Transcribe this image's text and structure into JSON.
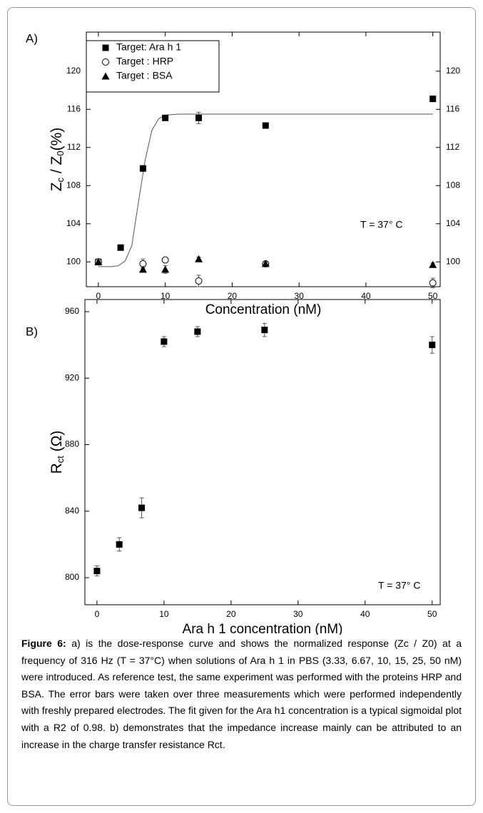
{
  "chart_data": [
    {
      "type": "scatter",
      "panel_label": "A)",
      "xlabel": "Concentration (nM)",
      "ylabel": [
        "Z",
        "c",
        " / Z",
        "0",
        "(%)"
      ],
      "xlim": [
        -1.8,
        51.1
      ],
      "ylim": [
        97.4,
        124.1
      ],
      "xticks": [
        0,
        10,
        20,
        30,
        40,
        50
      ],
      "yticks": [
        100,
        104,
        108,
        112,
        116,
        120
      ],
      "right_tick_labels": true,
      "legend": "upper left",
      "annotation": "T = 37° C",
      "series": [
        {
          "name": "Target: Ara h 1",
          "color": "#000000",
          "marker": "square",
          "x": [
            0,
            3.33,
            6.67,
            10,
            15,
            25,
            50
          ],
          "values": [
            100,
            101.5,
            109.8,
            115.1,
            115.1,
            114.3,
            117.1
          ],
          "errors": [
            0.2,
            0.1,
            0.3,
            0.2,
            0.6,
            0.2,
            0.3
          ]
        },
        {
          "name": "Target : HRP",
          "color": "#000000",
          "marker": "circle",
          "x": [
            0,
            6.67,
            10,
            15,
            25,
            50
          ],
          "values": [
            100,
            99.8,
            100.2,
            98.0,
            99.8,
            97.8
          ],
          "errors": [
            0.2,
            0.5,
            0.2,
            0.6,
            0.2,
            0.5
          ]
        },
        {
          "name": "Target : BSA",
          "color": "#000000",
          "marker": "triangle",
          "x": [
            0,
            6.67,
            10,
            15,
            25,
            50
          ],
          "values": [
            100,
            99.2,
            99.2,
            100.3,
            99.8,
            99.7
          ],
          "errors": [
            0.1,
            0.2,
            0.4,
            0.2,
            0.2,
            0.2
          ]
        }
      ],
      "fit": {
        "color": "#555555",
        "x": [
          0,
          2,
          3,
          4,
          5,
          6,
          7,
          8,
          9,
          10,
          12,
          20,
          50
        ],
        "y": [
          99.5,
          99.5,
          99.6,
          100.1,
          101.7,
          106.3,
          110.7,
          113.8,
          115.0,
          115.4,
          115.5,
          115.5,
          115.5
        ]
      }
    },
    {
      "type": "scatter",
      "panel_label": "B)",
      "xlabel": "Ara h 1 concentration (nM)",
      "ylabel": [
        "R",
        "ct",
        " (Ω)"
      ],
      "xlim": [
        -1.8,
        51.2
      ],
      "ylim": [
        783.7,
        967.3
      ],
      "xticks": [
        0,
        10,
        20,
        30,
        40,
        50
      ],
      "yticks": [
        800,
        840,
        880,
        920,
        960
      ],
      "right_tick_labels": false,
      "annotation": "T = 37° C",
      "series": [
        {
          "color": "#000000",
          "marker": "square",
          "x": [
            0,
            3.33,
            6.67,
            10,
            15,
            25,
            50
          ],
          "values": [
            804,
            820,
            842,
            942,
            948,
            949,
            940
          ],
          "errors": [
            3,
            4,
            6,
            3,
            3,
            4,
            5
          ]
        }
      ]
    }
  ],
  "caption": {
    "label": "Figure 6:",
    "text": " a) is the dose-response curve and shows the normalized response (Zc / Z0) at a frequency of 316 Hz (T = 37°C) when solutions of Ara h 1 in PBS (3.33, 6.67, 10, 15, 25, 50 nM) were introduced. As reference test, the same experiment was performed with the proteins HRP and BSA. The error bars were taken over three measurements which were performed independently with freshly prepared electrodes. The fit given for the Ara h1 concentration is a typical sigmoidal plot with a R2 of 0.98. b) demonstrates that the impedance increase mainly can be attributed to an increase in the charge transfer resistance Rct."
  }
}
